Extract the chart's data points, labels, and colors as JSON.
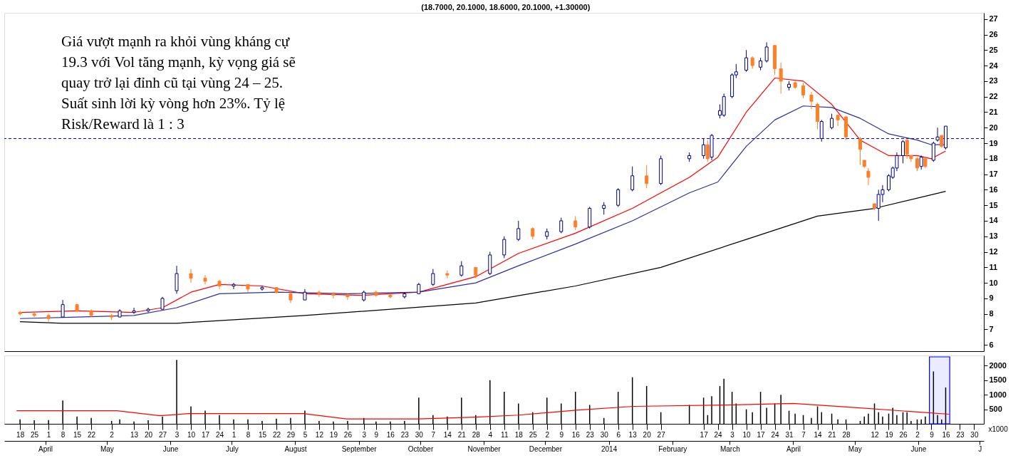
{
  "chart_data": [
    {
      "type": "candlestick",
      "title": "(18.7000, 20.1000, 18.6000, 20.1000, +1.30000)",
      "annotations": [
        "Giá vượt mạnh ra khỏi vùng kháng cự 19.3 với Vol tăng mạnh, kỳ vọng giá sẽ quay trở lại đỉnh cũ tại vùng 24 – 25. Suất sinh lời kỳ vòng hơn 23%. Tỷ lệ Risk/Reward là 1 : 3"
      ],
      "x": [
        "2013-03-18",
        "2013-03-25",
        "2013-04-01",
        "2013-04-08",
        "2013-04-15",
        "2013-04-22",
        "2013-05-02",
        "2013-05-06",
        "2013-05-13",
        "2013-05-20",
        "2013-05-27",
        "2013-06-03",
        "2013-06-10",
        "2013-06-17",
        "2013-06-24",
        "2013-07-01",
        "2013-07-08",
        "2013-07-15",
        "2013-07-22",
        "2013-07-29",
        "2013-08-05",
        "2013-08-12",
        "2013-08-19",
        "2013-08-26",
        "2013-09-03",
        "2013-09-09",
        "2013-09-16",
        "2013-09-23",
        "2013-09-30",
        "2013-10-07",
        "2013-10-14",
        "2013-10-21",
        "2013-10-28",
        "2013-11-04",
        "2013-11-11",
        "2013-11-18",
        "2013-11-25",
        "2013-12-02",
        "2013-12-09",
        "2013-12-16",
        "2013-12-23",
        "2013-12-30",
        "2014-01-06",
        "2014-01-13",
        "2014-01-20",
        "2014-01-27",
        "2014-02-10",
        "2014-02-17",
        "2014-02-19",
        "2014-02-21",
        "2014-02-25",
        "2014-02-27",
        "2014-03-03",
        "2014-03-05",
        "2014-03-10",
        "2014-03-13",
        "2014-03-17",
        "2014-03-20",
        "2014-03-24",
        "2014-03-27",
        "2014-03-31",
        "2014-04-03",
        "2014-04-07",
        "2014-04-11",
        "2014-04-14",
        "2014-04-16",
        "2014-04-21",
        "2014-04-24",
        "2014-04-28",
        "2014-05-05",
        "2014-05-07",
        "2014-05-09",
        "2014-05-12",
        "2014-05-14",
        "2014-05-16",
        "2014-05-19",
        "2014-05-21",
        "2014-05-23",
        "2014-05-26",
        "2014-05-28",
        "2014-05-30",
        "2014-06-02",
        "2014-06-04",
        "2014-06-06",
        "2014-06-10",
        "2014-06-12",
        "2014-06-14",
        "2014-06-16"
      ],
      "ohlc": [
        [
          8.1,
          8.2,
          7.9,
          8.0
        ],
        [
          8.0,
          8.1,
          7.8,
          7.9
        ],
        [
          7.9,
          8.0,
          7.5,
          7.7
        ],
        [
          7.8,
          8.9,
          7.8,
          8.6
        ],
        [
          8.6,
          8.6,
          8.1,
          8.2
        ],
        [
          8.2,
          8.3,
          7.8,
          7.9
        ],
        [
          7.9,
          8.0,
          7.6,
          7.8
        ],
        [
          7.8,
          8.3,
          7.8,
          8.2
        ],
        [
          8.1,
          8.4,
          8.0,
          8.2
        ],
        [
          8.2,
          8.4,
          8.1,
          8.3
        ],
        [
          8.3,
          9.1,
          8.3,
          9.0
        ],
        [
          9.5,
          11.1,
          9.3,
          10.6
        ],
        [
          10.6,
          10.9,
          10.0,
          10.3
        ],
        [
          10.3,
          10.5,
          9.9,
          10.1
        ],
        [
          10.1,
          10.2,
          9.6,
          9.8
        ],
        [
          9.8,
          10.0,
          9.6,
          9.9
        ],
        [
          9.9,
          9.9,
          9.4,
          9.6
        ],
        [
          9.6,
          9.8,
          9.5,
          9.7
        ],
        [
          9.7,
          9.7,
          9.3,
          9.4
        ],
        [
          9.3,
          9.4,
          8.7,
          8.9
        ],
        [
          8.9,
          9.6,
          8.9,
          9.4
        ],
        [
          9.4,
          9.5,
          9.1,
          9.3
        ],
        [
          9.3,
          9.4,
          9.0,
          9.2
        ],
        [
          9.2,
          9.3,
          8.9,
          9.1
        ],
        [
          8.9,
          9.5,
          8.8,
          9.4
        ],
        [
          9.4,
          9.5,
          9.1,
          9.2
        ],
        [
          9.2,
          9.3,
          9.0,
          9.1
        ],
        [
          9.1,
          9.4,
          9.0,
          9.3
        ],
        [
          9.3,
          10.0,
          9.3,
          9.9
        ],
        [
          9.9,
          10.9,
          9.8,
          10.6
        ],
        [
          10.6,
          10.8,
          10.3,
          10.5
        ],
        [
          10.5,
          11.4,
          10.4,
          11.1
        ],
        [
          11.0,
          11.0,
          10.3,
          10.5
        ],
        [
          10.6,
          12.0,
          10.5,
          11.8
        ],
        [
          11.8,
          13.0,
          11.6,
          12.8
        ],
        [
          12.8,
          14.0,
          12.7,
          13.5
        ],
        [
          13.5,
          13.6,
          12.8,
          13.0
        ],
        [
          13.0,
          13.5,
          12.8,
          13.3
        ],
        [
          13.3,
          14.2,
          13.2,
          14.0
        ],
        [
          14.0,
          14.3,
          13.4,
          13.6
        ],
        [
          13.6,
          14.9,
          13.5,
          14.8
        ],
        [
          14.8,
          15.2,
          14.4,
          15.0
        ],
        [
          15.0,
          16.1,
          14.9,
          16.0
        ],
        [
          16.0,
          17.5,
          15.9,
          16.9
        ],
        [
          16.9,
          17.6,
          16.1,
          16.4
        ],
        [
          16.4,
          18.2,
          16.3,
          18.0
        ],
        [
          18.0,
          18.4,
          17.8,
          18.2
        ],
        [
          18.2,
          19.3,
          18.0,
          18.9
        ],
        [
          18.9,
          19.2,
          17.8,
          18.0
        ],
        [
          18.1,
          19.6,
          17.9,
          19.5
        ],
        [
          20.8,
          21.5,
          20.6,
          21.1
        ],
        [
          20.8,
          22.2,
          20.7,
          22.0
        ],
        [
          22.0,
          23.5,
          21.9,
          23.4
        ],
        [
          23.4,
          24.1,
          23.2,
          23.6
        ],
        [
          23.7,
          25.0,
          23.6,
          24.5
        ],
        [
          24.5,
          24.6,
          23.8,
          24.0
        ],
        [
          23.9,
          24.5,
          23.7,
          24.3
        ],
        [
          24.3,
          25.5,
          24.2,
          25.2
        ],
        [
          25.3,
          25.3,
          23.4,
          23.8
        ],
        [
          23.8,
          24.2,
          22.2,
          23.0
        ],
        [
          22.6,
          23.0,
          22.4,
          22.8
        ],
        [
          22.9,
          23.0,
          22.5,
          22.6
        ],
        [
          22.7,
          22.9,
          21.9,
          22.1
        ],
        [
          22.1,
          22.3,
          21.2,
          21.7
        ],
        [
          21.5,
          21.6,
          19.9,
          20.4
        ],
        [
          19.3,
          20.5,
          19.1,
          20.4
        ],
        [
          20.0,
          20.9,
          19.9,
          20.6
        ],
        [
          20.8,
          20.8,
          20.1,
          20.5
        ],
        [
          20.7,
          20.7,
          19.2,
          19.4
        ],
        [
          19.3,
          19.4,
          17.6,
          18.6
        ],
        [
          17.9,
          17.9,
          17.4,
          17.5
        ],
        [
          17.2,
          17.4,
          16.3,
          16.8
        ],
        [
          15.1,
          15.1,
          14.7,
          14.8
        ],
        [
          14.8,
          16.0,
          14.0,
          15.7
        ],
        [
          15.7,
          16.3,
          15.2,
          16.0
        ],
        [
          16.0,
          17.0,
          15.9,
          16.9
        ],
        [
          16.8,
          17.5,
          16.7,
          17.4
        ],
        [
          17.4,
          18.4,
          17.2,
          18.2
        ],
        [
          18.2,
          19.2,
          17.7,
          19.1
        ],
        [
          19.2,
          19.3,
          18.0,
          18.3
        ],
        [
          18.2,
          18.2,
          17.8,
          18.0
        ],
        [
          18.0,
          18.1,
          17.2,
          17.4
        ],
        [
          17.5,
          18.2,
          17.3,
          18.1
        ],
        [
          18.0,
          18.1,
          17.4,
          17.5
        ],
        [
          17.9,
          19.1,
          17.8,
          19.0
        ],
        [
          19.2,
          20.0,
          19.1,
          19.4
        ],
        [
          19.5,
          19.5,
          18.7,
          18.8
        ],
        [
          18.7,
          20.1,
          18.6,
          20.1
        ]
      ],
      "colors": [
        "#ff7f27",
        "#ff7f27",
        "#ff7f27",
        "#000080",
        "#ff7f27",
        "#ff7f27",
        "#ff7f27",
        "#000080",
        "#000080",
        "#000080",
        "#000080",
        "#000080",
        "#ff7f27",
        "#ff7f27",
        "#ff7f27",
        "#000080",
        "#ff7f27",
        "#000080",
        "#ff7f27",
        "#ff7f27",
        "#000080",
        "#ff7f27",
        "#ff7f27",
        "#ff7f27",
        "#000080",
        "#ff7f27",
        "#ff7f27",
        "#000080",
        "#000080",
        "#000080",
        "#ff7f27",
        "#000080",
        "#ff7f27",
        "#000080",
        "#000080",
        "#000080",
        "#ff7f27",
        "#000080",
        "#000080",
        "#ff7f27",
        "#000080",
        "#000080",
        "#000080",
        "#000080",
        "#ff7f27",
        "#000080",
        "#000080",
        "#000080",
        "#ff7f27",
        "#000080",
        "#000080",
        "#000080",
        "#000080",
        "#000080",
        "#000080",
        "#ff7f27",
        "#000080",
        "#000080",
        "#ff7f27",
        "#ff7f27",
        "#000080",
        "#ff7f27",
        "#ff7f27",
        "#ff7f27",
        "#ff7f27",
        "#000080",
        "#000080",
        "#ff7f27",
        "#ff7f27",
        "#ff7f27",
        "#ff7f27",
        "#ff7f27",
        "#ff7f27",
        "#000080",
        "#000080",
        "#000080",
        "#000080",
        "#000080",
        "#000080",
        "#ff7f27",
        "#ff7f27",
        "#ff7f27",
        "#000080",
        "#ff7f27",
        "#000080",
        "#000080",
        "#ff7f27",
        "#000080"
      ],
      "series": [
        {
          "type": "line",
          "color": "#ff0000",
          "x": [
            "2013-03-18",
            "2013-04-15",
            "2013-05-13",
            "2013-05-27",
            "2013-06-10",
            "2013-06-24",
            "2013-07-15",
            "2013-08-05",
            "2013-09-02",
            "2013-09-30",
            "2013-10-28",
            "2013-11-18",
            "2013-12-16",
            "2014-01-13",
            "2014-02-10",
            "2014-02-24",
            "2014-03-10",
            "2014-03-24",
            "2014-04-07",
            "2014-04-21",
            "2014-05-05",
            "2014-05-19",
            "2014-06-02",
            "2014-06-09",
            "2014-06-16"
          ],
          "values": [
            8.1,
            8.2,
            8.1,
            8.4,
            9.4,
            9.9,
            9.8,
            9.3,
            9.2,
            9.4,
            10.4,
            11.9,
            13.2,
            14.8,
            16.8,
            18.1,
            21.0,
            23.2,
            23.0,
            21.5,
            19.2,
            18.2,
            18.2,
            18.0,
            18.5
          ]
        },
        {
          "type": "line",
          "color": "#2e2e9e",
          "x": [
            "2013-03-18",
            "2013-04-15",
            "2013-05-13",
            "2013-06-03",
            "2013-06-24",
            "2013-07-22",
            "2013-08-26",
            "2013-09-30",
            "2013-10-28",
            "2013-11-18",
            "2013-12-16",
            "2014-01-13",
            "2014-02-10",
            "2014-02-24",
            "2014-03-10",
            "2014-03-24",
            "2014-04-07",
            "2014-04-21",
            "2014-05-05",
            "2014-05-19",
            "2014-06-02",
            "2014-06-09",
            "2014-06-16"
          ],
          "values": [
            7.7,
            7.8,
            7.9,
            8.4,
            9.3,
            9.4,
            9.3,
            9.4,
            10.0,
            11.1,
            12.5,
            14.0,
            15.8,
            16.5,
            18.8,
            20.5,
            21.4,
            21.3,
            20.6,
            19.6,
            19.2,
            18.9,
            18.9
          ]
        },
        {
          "type": "line",
          "color": "#000000",
          "x": [
            "2013-03-18",
            "2013-04-08",
            "2013-06-03",
            "2013-08-05",
            "2013-10-28",
            "2013-12-16",
            "2014-01-27",
            "2014-03-10",
            "2014-04-14",
            "2014-05-12",
            "2014-06-16"
          ],
          "values": [
            7.5,
            7.4,
            7.4,
            7.9,
            8.7,
            9.8,
            11.0,
            12.8,
            14.3,
            14.8,
            15.9
          ]
        }
      ],
      "ref_lines": [
        {
          "axis": "y",
          "value": 19.3,
          "color": "#0000ff",
          "line_style": "dashed"
        }
      ],
      "xlim": [
        "2013-03-12",
        "2014-07-03"
      ],
      "ylim": [
        5.6,
        27.4
      ],
      "yticks": [
        6,
        7,
        8,
        9,
        10,
        11,
        12,
        13,
        14,
        15,
        16,
        17,
        18,
        19,
        20,
        21,
        22,
        23,
        24,
        25,
        26,
        27
      ],
      "tick_labels": "y"
    },
    {
      "type": "bar",
      "color": "#000000",
      "ylabel": "x1000",
      "x": [
        "2013-03-18",
        "2013-03-25",
        "2013-04-01",
        "2013-04-08",
        "2013-04-15",
        "2013-04-22",
        "2013-05-02",
        "2013-05-06",
        "2013-05-13",
        "2013-05-20",
        "2013-05-27",
        "2013-06-03",
        "2013-06-10",
        "2013-06-17",
        "2013-06-24",
        "2013-07-01",
        "2013-07-08",
        "2013-07-15",
        "2013-07-22",
        "2013-07-29",
        "2013-08-05",
        "2013-08-12",
        "2013-08-19",
        "2013-08-26",
        "2013-09-03",
        "2013-09-09",
        "2013-09-16",
        "2013-09-23",
        "2013-09-30",
        "2013-10-07",
        "2013-10-14",
        "2013-10-21",
        "2013-10-28",
        "2013-11-04",
        "2013-11-11",
        "2013-11-18",
        "2013-11-25",
        "2013-12-02",
        "2013-12-09",
        "2013-12-16",
        "2013-12-23",
        "2013-12-30",
        "2014-01-06",
        "2014-01-13",
        "2014-01-20",
        "2014-01-27",
        "2014-02-10",
        "2014-02-17",
        "2014-02-19",
        "2014-02-21",
        "2014-02-25",
        "2014-02-27",
        "2014-03-03",
        "2014-03-05",
        "2014-03-10",
        "2014-03-13",
        "2014-03-17",
        "2014-03-20",
        "2014-03-24",
        "2014-03-27",
        "2014-03-31",
        "2014-04-03",
        "2014-04-07",
        "2014-04-11",
        "2014-04-14",
        "2014-04-16",
        "2014-04-21",
        "2014-04-24",
        "2014-04-28",
        "2014-05-05",
        "2014-05-07",
        "2014-05-09",
        "2014-05-12",
        "2014-05-14",
        "2014-05-16",
        "2014-05-19",
        "2014-05-21",
        "2014-05-23",
        "2014-05-26",
        "2014-05-28",
        "2014-05-30",
        "2014-06-02",
        "2014-06-04",
        "2014-06-06",
        "2014-06-10",
        "2014-06-12",
        "2014-06-14",
        "2014-06-16"
      ],
      "values": [
        150,
        120,
        130,
        800,
        250,
        200,
        100,
        150,
        80,
        120,
        250,
        2200,
        600,
        450,
        300,
        150,
        150,
        100,
        180,
        200,
        450,
        100,
        80,
        100,
        200,
        80,
        80,
        100,
        900,
        300,
        250,
        900,
        300,
        1500,
        1100,
        700,
        400,
        900,
        700,
        1100,
        650,
        200,
        1100,
        1600,
        1300,
        400,
        650,
        900,
        300,
        950,
        1300,
        1550,
        1100,
        700,
        500,
        400,
        1100,
        550,
        700,
        1000,
        450,
        350,
        300,
        200,
        600,
        400,
        350,
        150,
        150,
        100,
        250,
        350,
        700,
        400,
        250,
        350,
        550,
        300,
        400,
        400,
        100,
        150,
        150,
        250,
        1800,
        300,
        150,
        1250
      ],
      "series": [
        {
          "type": "line",
          "color": "#ff0000",
          "x": [
            "2013-03-18",
            "2013-05-06",
            "2013-05-27",
            "2013-06-10",
            "2013-08-05",
            "2013-08-26",
            "2013-09-30",
            "2013-10-28",
            "2013-11-18",
            "2013-12-16",
            "2014-01-13",
            "2014-03-03",
            "2014-04-01",
            "2014-05-01",
            "2014-06-02",
            "2014-06-16"
          ],
          "values": [
            450,
            450,
            280,
            350,
            350,
            170,
            170,
            230,
            300,
            470,
            600,
            650,
            700,
            560,
            400,
            330
          ]
        }
      ],
      "bands": [
        {
          "axis": "x",
          "from": "2014-06-08",
          "to": "2014-06-18",
          "color": "#0000ff"
        }
      ],
      "xlim": [
        "2013-03-12",
        "2014-07-03"
      ],
      "x2lim": [
        "2013-03-12",
        "2014-07-03"
      ],
      "ylim": [
        0,
        2350
      ],
      "yticks": [
        500,
        1000,
        1500,
        2000
      ],
      "xticks": [
        {
          "value": "2013-03-18",
          "label": "18"
        },
        {
          "value": "2013-03-25",
          "label": "25"
        },
        {
          "value": "2013-04-01",
          "label": "1"
        },
        {
          "value": "2013-04-08",
          "label": "8"
        },
        {
          "value": "2013-04-15",
          "label": "15"
        },
        {
          "value": "2013-04-22",
          "label": "22"
        },
        {
          "value": "2013-05-02",
          "label": "2"
        },
        {
          "value": "2013-05-13",
          "label": "13"
        },
        {
          "value": "2013-05-20",
          "label": "20"
        },
        {
          "value": "2013-05-27",
          "label": "27"
        },
        {
          "value": "2013-06-03",
          "label": "3"
        },
        {
          "value": "2013-06-10",
          "label": "10"
        },
        {
          "value": "2013-06-17",
          "label": "17"
        },
        {
          "value": "2013-06-24",
          "label": "24"
        },
        {
          "value": "2013-07-01",
          "label": "1"
        },
        {
          "value": "2013-07-08",
          "label": "8"
        },
        {
          "value": "2013-07-15",
          "label": "15"
        },
        {
          "value": "2013-07-22",
          "label": "22"
        },
        {
          "value": "2013-07-29",
          "label": "29"
        },
        {
          "value": "2013-08-05",
          "label": "5"
        },
        {
          "value": "2013-08-12",
          "label": "12"
        },
        {
          "value": "2013-08-19",
          "label": "19"
        },
        {
          "value": "2013-08-26",
          "label": "26"
        },
        {
          "value": "2013-09-03",
          "label": "3"
        },
        {
          "value": "2013-09-09",
          "label": "9"
        },
        {
          "value": "2013-09-16",
          "label": "16"
        },
        {
          "value": "2013-09-23",
          "label": "23"
        },
        {
          "value": "2013-09-30",
          "label": "30"
        },
        {
          "value": "2013-10-07",
          "label": "7"
        },
        {
          "value": "2013-10-14",
          "label": "14"
        },
        {
          "value": "2013-10-21",
          "label": "21"
        },
        {
          "value": "2013-10-28",
          "label": "28"
        },
        {
          "value": "2013-11-04",
          "label": "4"
        },
        {
          "value": "2013-11-11",
          "label": "11"
        },
        {
          "value": "2013-11-18",
          "label": "18"
        },
        {
          "value": "2013-11-25",
          "label": "25"
        },
        {
          "value": "2013-12-02",
          "label": "2"
        },
        {
          "value": "2013-12-09",
          "label": "9"
        },
        {
          "value": "2013-12-16",
          "label": "16"
        },
        {
          "value": "2013-12-23",
          "label": "23"
        },
        {
          "value": "2013-12-30",
          "label": "30"
        },
        {
          "value": "2014-01-06",
          "label": "6"
        },
        {
          "value": "2014-01-13",
          "label": "13"
        },
        {
          "value": "2014-01-20",
          "label": "20"
        },
        {
          "value": "2014-01-27",
          "label": "27"
        },
        {
          "value": "2014-02-17",
          "label": "17"
        },
        {
          "value": "2014-02-24",
          "label": "24"
        },
        {
          "value": "2014-03-03",
          "label": "3"
        },
        {
          "value": "2014-03-10",
          "label": "10"
        },
        {
          "value": "2014-03-17",
          "label": "17"
        },
        {
          "value": "2014-03-24",
          "label": "24"
        },
        {
          "value": "2014-03-31",
          "label": "31"
        },
        {
          "value": "2014-04-07",
          "label": "7"
        },
        {
          "value": "2014-04-14",
          "label": "14"
        },
        {
          "value": "2014-04-21",
          "label": "21"
        },
        {
          "value": "2014-04-28",
          "label": "28"
        },
        {
          "value": "2014-05-12",
          "label": "12"
        },
        {
          "value": "2014-05-19",
          "label": "19"
        },
        {
          "value": "2014-05-26",
          "label": "26"
        },
        {
          "value": "2014-06-02",
          "label": "2"
        },
        {
          "value": "2014-06-09",
          "label": "9"
        },
        {
          "value": "2014-06-16",
          "label": "16"
        },
        {
          "value": "2014-06-23",
          "label": "23"
        },
        {
          "value": "2014-06-30",
          "label": "30"
        }
      ],
      "x2ticks": [
        {
          "value": "2013-04-01",
          "label": "April"
        },
        {
          "value": "2013-05-01",
          "label": "May"
        },
        {
          "value": "2013-06-01",
          "label": "June"
        },
        {
          "value": "2013-07-01",
          "label": "July"
        },
        {
          "value": "2013-08-01",
          "label": "August"
        },
        {
          "value": "2013-09-01",
          "label": "September"
        },
        {
          "value": "2013-10-01",
          "label": "October"
        },
        {
          "value": "2013-11-01",
          "label": "November"
        },
        {
          "value": "2013-12-01",
          "label": "December"
        },
        {
          "value": "2014-01-01",
          "label": "2014"
        },
        {
          "value": "2014-02-01",
          "label": "February"
        },
        {
          "value": "2014-03-01",
          "label": "March"
        },
        {
          "value": "2014-04-01",
          "label": "April"
        },
        {
          "value": "2014-05-01",
          "label": "May"
        },
        {
          "value": "2014-06-01",
          "label": "June"
        },
        {
          "value": "2014-07-01",
          "label": "J"
        }
      ]
    }
  ]
}
